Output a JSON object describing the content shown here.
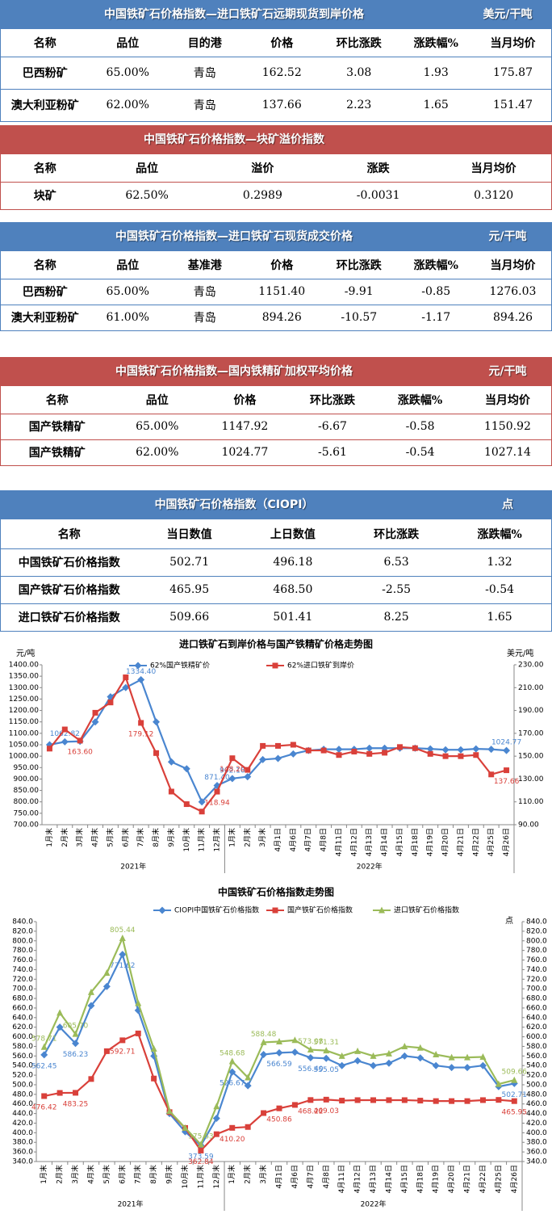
{
  "tables": [
    {
      "title": "中国铁矿石价格指数—进口铁矿石远期现货到岸价格",
      "unit": "美元/干吨",
      "color": "#4f81bd",
      "columns": [
        "名称",
        "品位",
        "目的港",
        "价格",
        "环比涨跌",
        "涨跌幅%",
        "当月均价"
      ],
      "rows": [
        [
          "巴西粉矿",
          "65.00%",
          "青岛",
          "162.52",
          "3.08",
          "1.93",
          "175.87"
        ],
        [
          "澳大利亚粉矿",
          "62.00%",
          "青岛",
          "137.66",
          "2.23",
          "1.65",
          "151.47"
        ]
      ]
    },
    {
      "title": "中国铁矿石价格指数—块矿溢价指数",
      "color": "#c0504d",
      "columns": [
        "名称",
        "品位",
        "溢价",
        "涨跌",
        "当月均价"
      ],
      "rows": [
        [
          "块矿",
          "62.50%",
          "0.2989",
          "-0.0031",
          "0.3120"
        ]
      ]
    },
    {
      "title": "中国铁矿石价格指数—进口铁矿石现货成交价格",
      "unit": "元/干吨",
      "color": "#4f81bd",
      "columns": [
        "名称",
        "品位",
        "基准港",
        "价格",
        "环比涨跌",
        "涨跌幅%",
        "当月均价"
      ],
      "rows": [
        [
          "巴西粉矿",
          "65.00%",
          "青岛",
          "1151.40",
          "-9.91",
          "-0.85",
          "1276.03"
        ],
        [
          "澳大利亚粉矿",
          "61.00%",
          "青岛",
          "894.26",
          "-10.57",
          "-1.17",
          "894.26"
        ]
      ]
    },
    {
      "title": "中国铁矿石价格指数—国内铁精矿加权平均价格",
      "unit": "元/干吨",
      "color": "#c0504d",
      "columns": [
        "名称",
        "品位",
        "价格",
        "环比涨跌",
        "涨跌幅%",
        "当月均价"
      ],
      "rows": [
        [
          "国产铁精矿",
          "65.00%",
          "1147.92",
          "-6.67",
          "-0.58",
          "1150.92"
        ],
        [
          "国产铁精矿",
          "62.00%",
          "1024.77",
          "-5.61",
          "-0.54",
          "1027.14"
        ]
      ]
    },
    {
      "title": "中国铁矿石价格指数（CIOPI）",
      "unit": "点",
      "color": "#4f81bd",
      "columns": [
        "名称",
        "当日数值",
        "上日数值",
        "环比涨跌",
        "涨跌幅%"
      ],
      "rows": [
        [
          "中国铁矿石价格指数",
          "502.71",
          "496.18",
          "6.53",
          "1.32"
        ],
        [
          "国产铁矿石价格指数",
          "465.95",
          "468.50",
          "-2.55",
          "-0.54"
        ],
        [
          "进口铁矿石价格指数",
          "509.66",
          "501.41",
          "8.25",
          "1.65"
        ]
      ]
    }
  ],
  "chart_data": [
    {
      "type": "line",
      "title": "进口铁矿石到岸价格与国产铁精矿价格走势图",
      "y_label": "元/吨",
      "y2_label": "美元/吨",
      "legend": "top",
      "grid": false,
      "categories": [
        "1月末",
        "2月末",
        "3月末",
        "4月末",
        "5月末",
        "6月末",
        "7月末",
        "8月末",
        "9月末",
        "10月末",
        "11月末",
        "12月末",
        "1月末",
        "2月末",
        "3月末",
        "4月1日",
        "4月6日",
        "4月7日",
        "4月8日",
        "4月11日",
        "4月12日",
        "4月13日",
        "4月14日",
        "4月15日",
        "4月18日",
        "4月19日",
        "4月20日",
        "4月21日",
        "4月22日",
        "4月25日",
        "4月26日"
      ],
      "x_groups": [
        {
          "label": "2021年",
          "count": 12
        },
        {
          "label": "2022年",
          "count": 19
        }
      ],
      "ylim": [
        700,
        1400
      ],
      "yticks": [
        {
          "value": 700,
          "label": "700.00"
        },
        {
          "value": 750,
          "label": "750.00"
        },
        {
          "value": 800,
          "label": "800.00"
        },
        {
          "value": 850,
          "label": "850.00"
        },
        {
          "value": 900,
          "label": "900.00"
        },
        {
          "value": 950,
          "label": "950.00"
        },
        {
          "value": 1000,
          "label": "1000.00"
        },
        {
          "value": 1050,
          "label": "1050.00"
        },
        {
          "value": 1100,
          "label": "1100.00"
        },
        {
          "value": 1150,
          "label": "1150.00"
        },
        {
          "value": 1200,
          "label": "1200.00"
        },
        {
          "value": 1250,
          "label": "1250.00"
        },
        {
          "value": 1300,
          "label": "1300.00"
        },
        {
          "value": 1350,
          "label": "1350.00"
        },
        {
          "value": 1400,
          "label": "1400.00"
        }
      ],
      "y2lim": [
        90,
        230
      ],
      "y2ticks": [
        {
          "value": 90,
          "label": "90.00"
        },
        {
          "value": 110,
          "label": "110.00"
        },
        {
          "value": 130,
          "label": "130.00"
        },
        {
          "value": 150,
          "label": "150.00"
        },
        {
          "value": 170,
          "label": "170.00"
        },
        {
          "value": 190,
          "label": "190.00"
        },
        {
          "value": 210,
          "label": "210.00"
        },
        {
          "value": 230,
          "label": "230.00"
        }
      ],
      "series": [
        {
          "name": "62%国产铁精矿价",
          "color": "#4a86d0",
          "marker": "diamond",
          "values": [
            1050,
            1062.82,
            1065,
            1150,
            1260,
            1300,
            1334.4,
            1150,
            975,
            945,
            800,
            871.4,
            902.16,
            910,
            985,
            990,
            1010,
            1025,
            1030,
            1030,
            1030,
            1035,
            1035,
            1035,
            1035,
            1032,
            1028,
            1028,
            1032,
            1030,
            1024.77
          ],
          "value_labels": [
            null,
            "1062.82",
            null,
            null,
            null,
            null,
            "1334.40",
            null,
            null,
            null,
            null,
            "871.40",
            "902.16",
            null,
            null,
            null,
            null,
            null,
            null,
            null,
            null,
            null,
            null,
            null,
            null,
            null,
            null,
            null,
            null,
            null,
            "1024.77"
          ]
        },
        {
          "name": "62%进口铁矿到岸价",
          "color": "#d9403a",
          "marker": "square",
          "axis": "y2",
          "values": [
            156.6,
            173.4,
            163.6,
            188,
            197,
            219,
            179.12,
            152.7,
            119,
            108,
            101.5,
            118.94,
            148.2,
            138,
            159,
            159,
            160,
            155,
            155,
            151,
            154,
            152,
            153,
            158,
            157,
            152,
            150,
            150,
            151,
            134,
            137.66
          ],
          "value_labels": [
            null,
            null,
            "163.60",
            null,
            null,
            null,
            "179.12",
            null,
            null,
            null,
            null,
            "118.94",
            "148.20",
            null,
            null,
            null,
            null,
            null,
            null,
            null,
            null,
            null,
            null,
            null,
            null,
            null,
            null,
            null,
            null,
            null,
            "137.66"
          ]
        }
      ]
    },
    {
      "type": "line",
      "title": "中国铁矿石价格指数走势图",
      "y2_label": "点",
      "legend": "top",
      "grid": false,
      "categories": [
        "1月末",
        "2月末",
        "3月末",
        "4月末",
        "5月末",
        "6月末",
        "7月末",
        "8月末",
        "9月末",
        "10月末",
        "11月末",
        "12月末",
        "1月末",
        "2月末",
        "3月末",
        "4月1日",
        "4月6日",
        "4月7日",
        "4月8日",
        "4月11日",
        "4月12日",
        "4月13日",
        "4月14日",
        "4月15日",
        "4月18日",
        "4月19日",
        "4月20日",
        "4月21日",
        "4月22日",
        "4月25日",
        "4月26日"
      ],
      "x_groups": [
        {
          "label": "2021年",
          "count": 12
        },
        {
          "label": "2022年",
          "count": 19
        }
      ],
      "ylim": [
        340,
        840
      ],
      "yticks": [
        {
          "value": 340,
          "label": "340.0"
        },
        {
          "value": 360,
          "label": "360.0"
        },
        {
          "value": 380,
          "label": "380.0"
        },
        {
          "value": 400,
          "label": "400.0"
        },
        {
          "value": 420,
          "label": "420.0"
        },
        {
          "value": 440,
          "label": "440.0"
        },
        {
          "value": 460,
          "label": "460.0"
        },
        {
          "value": 480,
          "label": "480.0"
        },
        {
          "value": 500,
          "label": "500.0"
        },
        {
          "value": 520,
          "label": "520.0"
        },
        {
          "value": 540,
          "label": "540.0"
        },
        {
          "value": 560,
          "label": "560.0"
        },
        {
          "value": 580,
          "label": "580.0"
        },
        {
          "value": 600,
          "label": "600.0"
        },
        {
          "value": 620,
          "label": "620.0"
        },
        {
          "value": 640,
          "label": "640.0"
        },
        {
          "value": 660,
          "label": "660.0"
        },
        {
          "value": 680,
          "label": "680.0"
        },
        {
          "value": 700,
          "label": "700.0"
        },
        {
          "value": 720,
          "label": "720.0"
        },
        {
          "value": 740,
          "label": "740.0"
        },
        {
          "value": 760,
          "label": "760.0"
        },
        {
          "value": 780,
          "label": "780.0"
        },
        {
          "value": 800,
          "label": "800.0"
        },
        {
          "value": 820,
          "label": "820.0"
        },
        {
          "value": 840,
          "label": "840.0"
        }
      ],
      "y2lim": [
        340,
        840
      ],
      "y2ticks": [
        {
          "value": 340,
          "label": "340.0"
        },
        {
          "value": 360,
          "label": "360.0"
        },
        {
          "value": 380,
          "label": "380.0"
        },
        {
          "value": 400,
          "label": "400.0"
        },
        {
          "value": 420,
          "label": "420.0"
        },
        {
          "value": 440,
          "label": "440.0"
        },
        {
          "value": 460,
          "label": "460.0"
        },
        {
          "value": 480,
          "label": "480.0"
        },
        {
          "value": 500,
          "label": "500.0"
        },
        {
          "value": 520,
          "label": "520.0"
        },
        {
          "value": 540,
          "label": "540.0"
        },
        {
          "value": 560,
          "label": "560.0"
        },
        {
          "value": 580,
          "label": "580.0"
        },
        {
          "value": 600,
          "label": "600.0"
        },
        {
          "value": 620,
          "label": "620.0"
        },
        {
          "value": 640,
          "label": "640.0"
        },
        {
          "value": 660,
          "label": "660.0"
        },
        {
          "value": 680,
          "label": "680.0"
        },
        {
          "value": 700,
          "label": "700.0"
        },
        {
          "value": 720,
          "label": "720.0"
        },
        {
          "value": 740,
          "label": "740.0"
        },
        {
          "value": 760,
          "label": "760.0"
        },
        {
          "value": 780,
          "label": "780.0"
        },
        {
          "value": 800,
          "label": "800.0"
        },
        {
          "value": 820,
          "label": "820.0"
        },
        {
          "value": 840,
          "label": "840.0"
        }
      ],
      "series": [
        {
          "name": "CIOPI中国铁矿石价格指数",
          "color": "#4a86d0",
          "marker": "diamond",
          "values": [
            562.45,
            620,
            586.23,
            665,
            705,
            771.62,
            655,
            560,
            440,
            402,
            373.59,
            430,
            526.67,
            498,
            563,
            566.59,
            568,
            556.4,
            555.05,
            540,
            550,
            540,
            545,
            560,
            556,
            540,
            536,
            536,
            540,
            496.18,
            502.71
          ],
          "value_labels": [
            "562.45",
            null,
            "586.23",
            null,
            null,
            "771.62",
            null,
            null,
            null,
            null,
            "373.59",
            null,
            "526.67",
            null,
            null,
            "566.59",
            null,
            "556.40",
            "555.05",
            null,
            null,
            null,
            null,
            null,
            null,
            null,
            null,
            null,
            null,
            null,
            "502.71"
          ]
        },
        {
          "name": "国产铁矿石价格指数",
          "color": "#d9403a",
          "marker": "square",
          "values": [
            476.42,
            483,
            483.25,
            512,
            570,
            592.71,
            607,
            513,
            443,
            410,
            362.84,
            397,
            410.2,
            412,
            441,
            450.86,
            458,
            468.22,
            469.03,
            467,
            468,
            468,
            468,
            468,
            467,
            466,
            466,
            466,
            468,
            468.5,
            465.95
          ],
          "value_labels": [
            "476.42",
            null,
            "483.25",
            null,
            null,
            "592.71",
            null,
            null,
            null,
            null,
            "362.84",
            null,
            "410.20",
            null,
            null,
            "450.86",
            null,
            "468.22",
            "469.03",
            null,
            null,
            null,
            null,
            null,
            null,
            null,
            null,
            null,
            null,
            null,
            "465.95"
          ]
        },
        {
          "name": "进口铁矿石价格指数",
          "color": "#9bbb59",
          "marker": "triangle",
          "values": [
            578.71,
            650,
            605.7,
            693,
            733,
            805.44,
            670,
            575,
            445,
            410,
            375.63,
            455,
            548.68,
            515,
            588.48,
            590,
            593,
            573.08,
            571.31,
            560,
            570,
            560,
            565,
            580,
            577,
            563,
            557,
            557,
            558,
            501.41,
            509.66
          ],
          "value_labels": [
            "578.71",
            null,
            "605.70",
            null,
            null,
            "805.44",
            null,
            null,
            null,
            null,
            "375.63",
            null,
            "548.68",
            null,
            "588.48",
            null,
            null,
            "573.08",
            "571.31",
            null,
            null,
            null,
            null,
            null,
            null,
            null,
            null,
            null,
            null,
            null,
            "509.66"
          ]
        }
      ]
    }
  ]
}
